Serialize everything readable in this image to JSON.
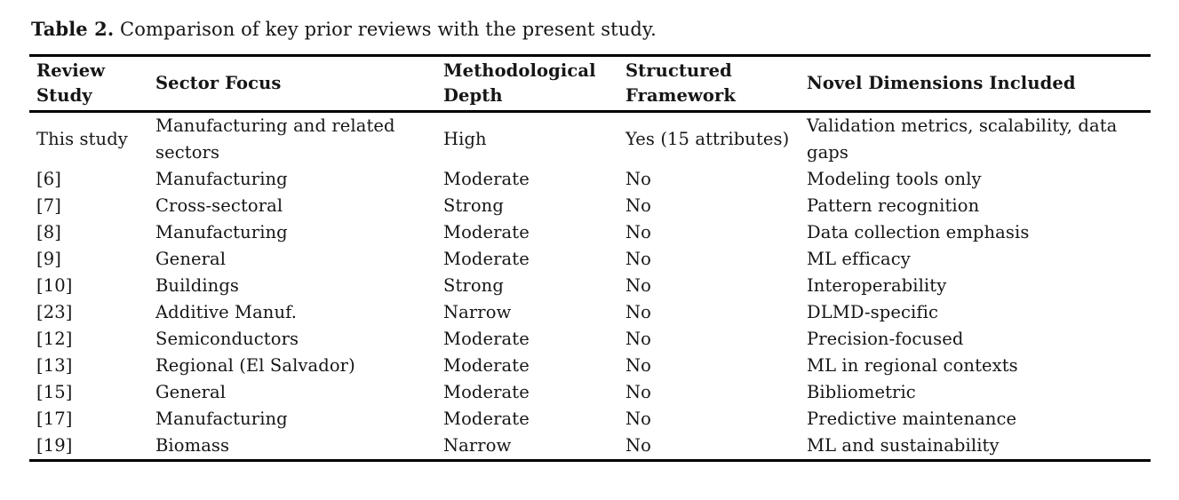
{
  "caption": {
    "label": "Table 2.",
    "text": " Comparison of key prior reviews with the present study."
  },
  "table": {
    "columns": [
      "Review Study",
      "Sector Focus",
      "Methodological Depth",
      "Structured Framework",
      "Novel Dimensions Included"
    ],
    "rows": [
      [
        "This study",
        "Manufacturing and related sectors",
        "High",
        "Yes (15 attributes)",
        "Validation metrics, scalability, data gaps"
      ],
      [
        "[6]",
        "Manufacturing",
        "Moderate",
        "No",
        "Modeling tools only"
      ],
      [
        "[7]",
        "Cross-sectoral",
        "Strong",
        "No",
        "Pattern recognition"
      ],
      [
        "[8]",
        "Manufacturing",
        "Moderate",
        "No",
        "Data collection emphasis"
      ],
      [
        "[9]",
        "General",
        "Moderate",
        "No",
        "ML efficacy"
      ],
      [
        "[10]",
        "Buildings",
        "Strong",
        "No",
        "Interoperability"
      ],
      [
        "[23]",
        "Additive Manuf.",
        "Narrow",
        "No",
        "DLMD-specific"
      ],
      [
        "[12]",
        "Semiconductors",
        "Moderate",
        "No",
        "Precision-focused"
      ],
      [
        "[13]",
        "Regional (El Salvador)",
        "Moderate",
        "No",
        "ML in regional contexts"
      ],
      [
        "[15]",
        "General",
        "Moderate",
        "No",
        "Bibliometric"
      ],
      [
        "[17]",
        "Manufacturing",
        "Moderate",
        "No",
        "Predictive maintenance"
      ],
      [
        "[19]",
        "Biomass",
        "Narrow",
        "No",
        "ML and sustainability"
      ]
    ]
  },
  "colors": {
    "text": "#161616",
    "rule": "#000000",
    "background": "#ffffff"
  }
}
